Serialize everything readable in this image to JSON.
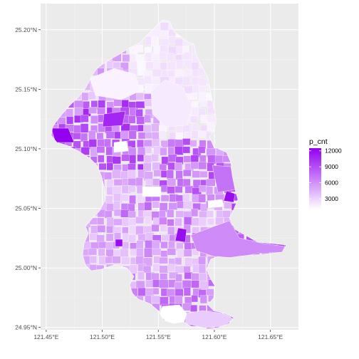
{
  "chart_data": {
    "type": "choropleth-map",
    "title": "",
    "xlabel": "",
    "ylabel": "",
    "grid": true,
    "legend": {
      "title": "p_cnt",
      "position": "right",
      "ticks": [
        12000,
        9000,
        6000,
        3000
      ],
      "range": [
        1000,
        12500
      ],
      "color_low": "#ffffff",
      "color_high": "#9400f0"
    },
    "x_ticks": [
      "121.45°E",
      "121.50°E",
      "121.55°E",
      "121.60°E",
      "121.65°E"
    ],
    "x_tick_values": [
      121.45,
      121.5,
      121.55,
      121.6,
      121.65
    ],
    "y_ticks": [
      "24.95°N",
      "25.00°N",
      "25.05°N",
      "25.10°N",
      "25.15°N",
      "25.20°N"
    ],
    "y_tick_values": [
      24.95,
      25.0,
      25.05,
      25.1,
      25.15,
      25.2
    ],
    "xlim": [
      121.445,
      121.675
    ],
    "ylim": [
      24.948,
      25.222
    ]
  }
}
